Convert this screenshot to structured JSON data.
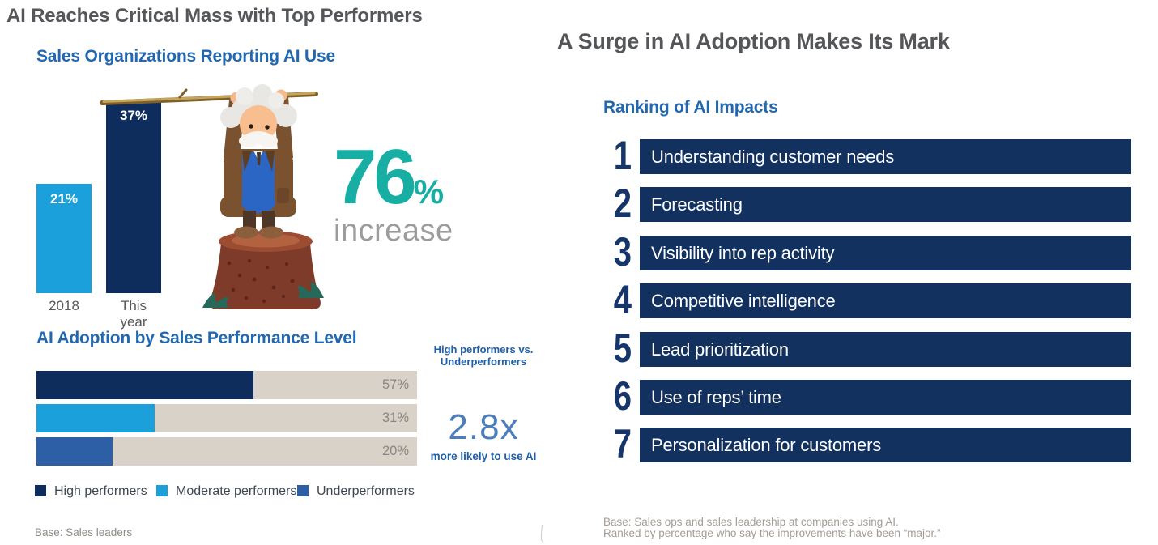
{
  "colors": {
    "navy": "#0F2D5C",
    "light_blue": "#1BA0DC",
    "mid_blue": "#2C5FA5",
    "teal_accent": "#17AEA4",
    "heading_blue": "#2268B1",
    "title_gray": "#54565A",
    "track_gray": "#D8D2C8",
    "ranking_bar_navy": "#12315F"
  },
  "left": {
    "title": "AI Reaches Critical Mass with Top Performers",
    "chart1": {
      "title": "Sales Organizations Reporting AI Use",
      "bars": [
        {
          "label": "2018",
          "value": 21,
          "display": "21%",
          "color": "#1BA0DC"
        },
        {
          "label": "This year",
          "value": 37,
          "display": "37%",
          "color": "#0F2D5C"
        }
      ],
      "highlight": {
        "number": "76",
        "percent": "%",
        "caption": "increase"
      }
    },
    "chart2": {
      "title": "AI Adoption by Sales Performance Level",
      "rows": [
        {
          "name": "High performers",
          "value": 57,
          "display": "57%",
          "color": "#0F2D5C"
        },
        {
          "name": "Moderate performers",
          "value": 31,
          "display": "31%",
          "color": "#1BA0DC"
        },
        {
          "name": "Underperformers",
          "value": 20,
          "display": "20%",
          "color": "#2C5FA5"
        }
      ],
      "comparison": {
        "line1": "High performers vs.",
        "line2": "Underperformers",
        "multiplier": "2.8x",
        "caption": "more likely to use AI"
      },
      "legend": [
        {
          "label": "High performers",
          "color": "#0F2D5C"
        },
        {
          "label": "Moderate performers",
          "color": "#1BA0DC"
        },
        {
          "label": "Underperformers",
          "color": "#2C5FA5"
        }
      ],
      "base_note": "Base: Sales leaders"
    }
  },
  "right": {
    "title": "A Surge in AI Adoption Makes Its Mark",
    "ranking": {
      "title": "Ranking of AI Impacts",
      "items": [
        {
          "rank": "1",
          "label": "Understanding customer needs"
        },
        {
          "rank": "2",
          "label": "Forecasting"
        },
        {
          "rank": "3",
          "label": "Visibility into rep activity"
        },
        {
          "rank": "4",
          "label": "Competitive intelligence"
        },
        {
          "rank": "5",
          "label": "Lead prioritization"
        },
        {
          "rank": "6",
          "label": "Use of reps’ time"
        },
        {
          "rank": "7",
          "label": "Personalization for customers"
        }
      ]
    },
    "footnote_line1": "Base: Sales ops and sales leadership at companies using AI.",
    "footnote_line2": "Ranked by percentage who say the improvements have been “major.”"
  },
  "chart_data": [
    {
      "type": "bar",
      "title": "Sales Organizations Reporting AI Use",
      "categories": [
        "2018",
        "This year"
      ],
      "values": [
        21,
        37
      ],
      "unit": "%",
      "ylim": [
        0,
        40
      ],
      "annotation": "76% increase",
      "colors": [
        "#1BA0DC",
        "#0F2D5C"
      ]
    },
    {
      "type": "bar",
      "orientation": "horizontal",
      "title": "AI Adoption by Sales Performance Level",
      "categories": [
        "High performers",
        "Moderate performers",
        "Underperformers"
      ],
      "values": [
        57,
        31,
        20
      ],
      "unit": "%",
      "xlim": [
        0,
        100
      ],
      "annotation": "High performers vs. Underperformers: 2.8x more likely to use AI",
      "note": "Base: Sales leaders",
      "legend_position": "bottom",
      "colors": [
        "#0F2D5C",
        "#1BA0DC",
        "#2C5FA5"
      ]
    },
    {
      "type": "table",
      "title": "Ranking of AI Impacts",
      "categories": [
        "Understanding customer needs",
        "Forecasting",
        "Visibility into rep activity",
        "Competitive intelligence",
        "Lead prioritization",
        "Use of reps’ time",
        "Personalization for customers"
      ],
      "values": [
        1,
        2,
        3,
        4,
        5,
        6,
        7
      ],
      "note": "Base: Sales ops and sales leadership at companies using AI. Ranked by percentage who say the improvements have been “major.”"
    }
  ]
}
